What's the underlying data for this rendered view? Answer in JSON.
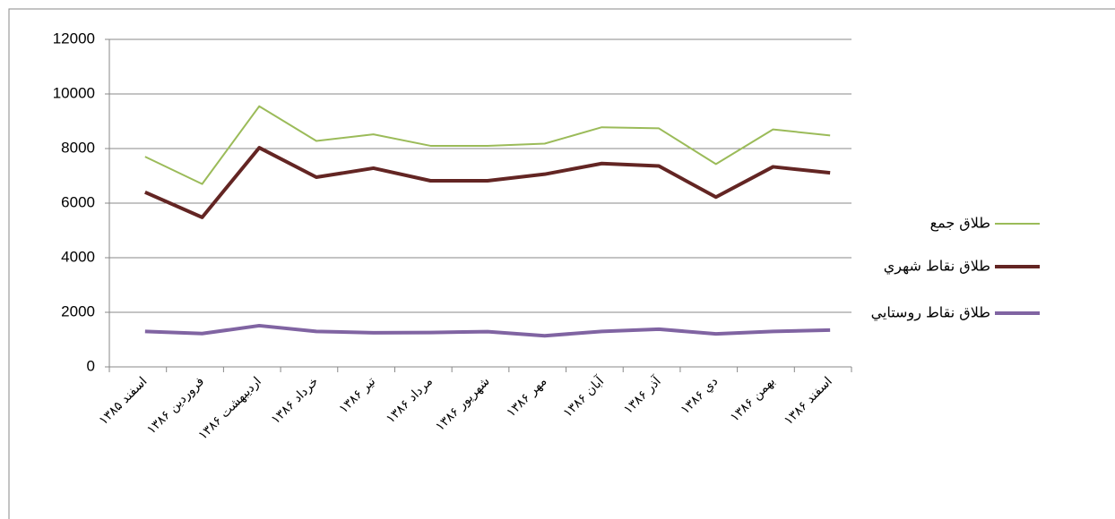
{
  "chart_data": {
    "type": "line",
    "categories": [
      "اسفند ۱۳۸۵",
      "فروردین ۱۳۸۶",
      "اردیبهشت ۱۳۸۶",
      "خرداد ۱۳۸۶",
      "تیر ۱۳۸۶",
      "مرداد ۱۳۸۶",
      "شهریور ۱۳۸۶",
      "مهر ۱۳۸۶",
      "آبان ۱۳۸۶",
      "آذر ۱۳۸۶",
      "دي ۱۳۸۶",
      "بهمن ۱۳۸۶",
      "اسفند ۱۳۸۶"
    ],
    "series": [
      {
        "name": "طلاق جمع",
        "color": "#9bbb59",
        "width": 2,
        "values": [
          7700,
          6700,
          9550,
          8280,
          8520,
          8100,
          8100,
          8180,
          8780,
          8740,
          7430,
          8700,
          8480
        ]
      },
      {
        "name": "طلاق نقاط شهري",
        "color": "#632523",
        "width": 4,
        "values": [
          6400,
          5480,
          8030,
          6950,
          7280,
          6820,
          6820,
          7060,
          7450,
          7360,
          6220,
          7330,
          7110
        ]
      },
      {
        "name": "طلاق نقاط روستايي",
        "color": "#8064a2",
        "width": 4,
        "values": [
          1300,
          1220,
          1510,
          1300,
          1250,
          1260,
          1290,
          1140,
          1300,
          1380,
          1210,
          1300,
          1350
        ]
      }
    ],
    "ylim": [
      0,
      12000
    ],
    "yticks": [
      0,
      2000,
      4000,
      6000,
      8000,
      10000,
      12000
    ],
    "grid": true,
    "legend": "right"
  }
}
